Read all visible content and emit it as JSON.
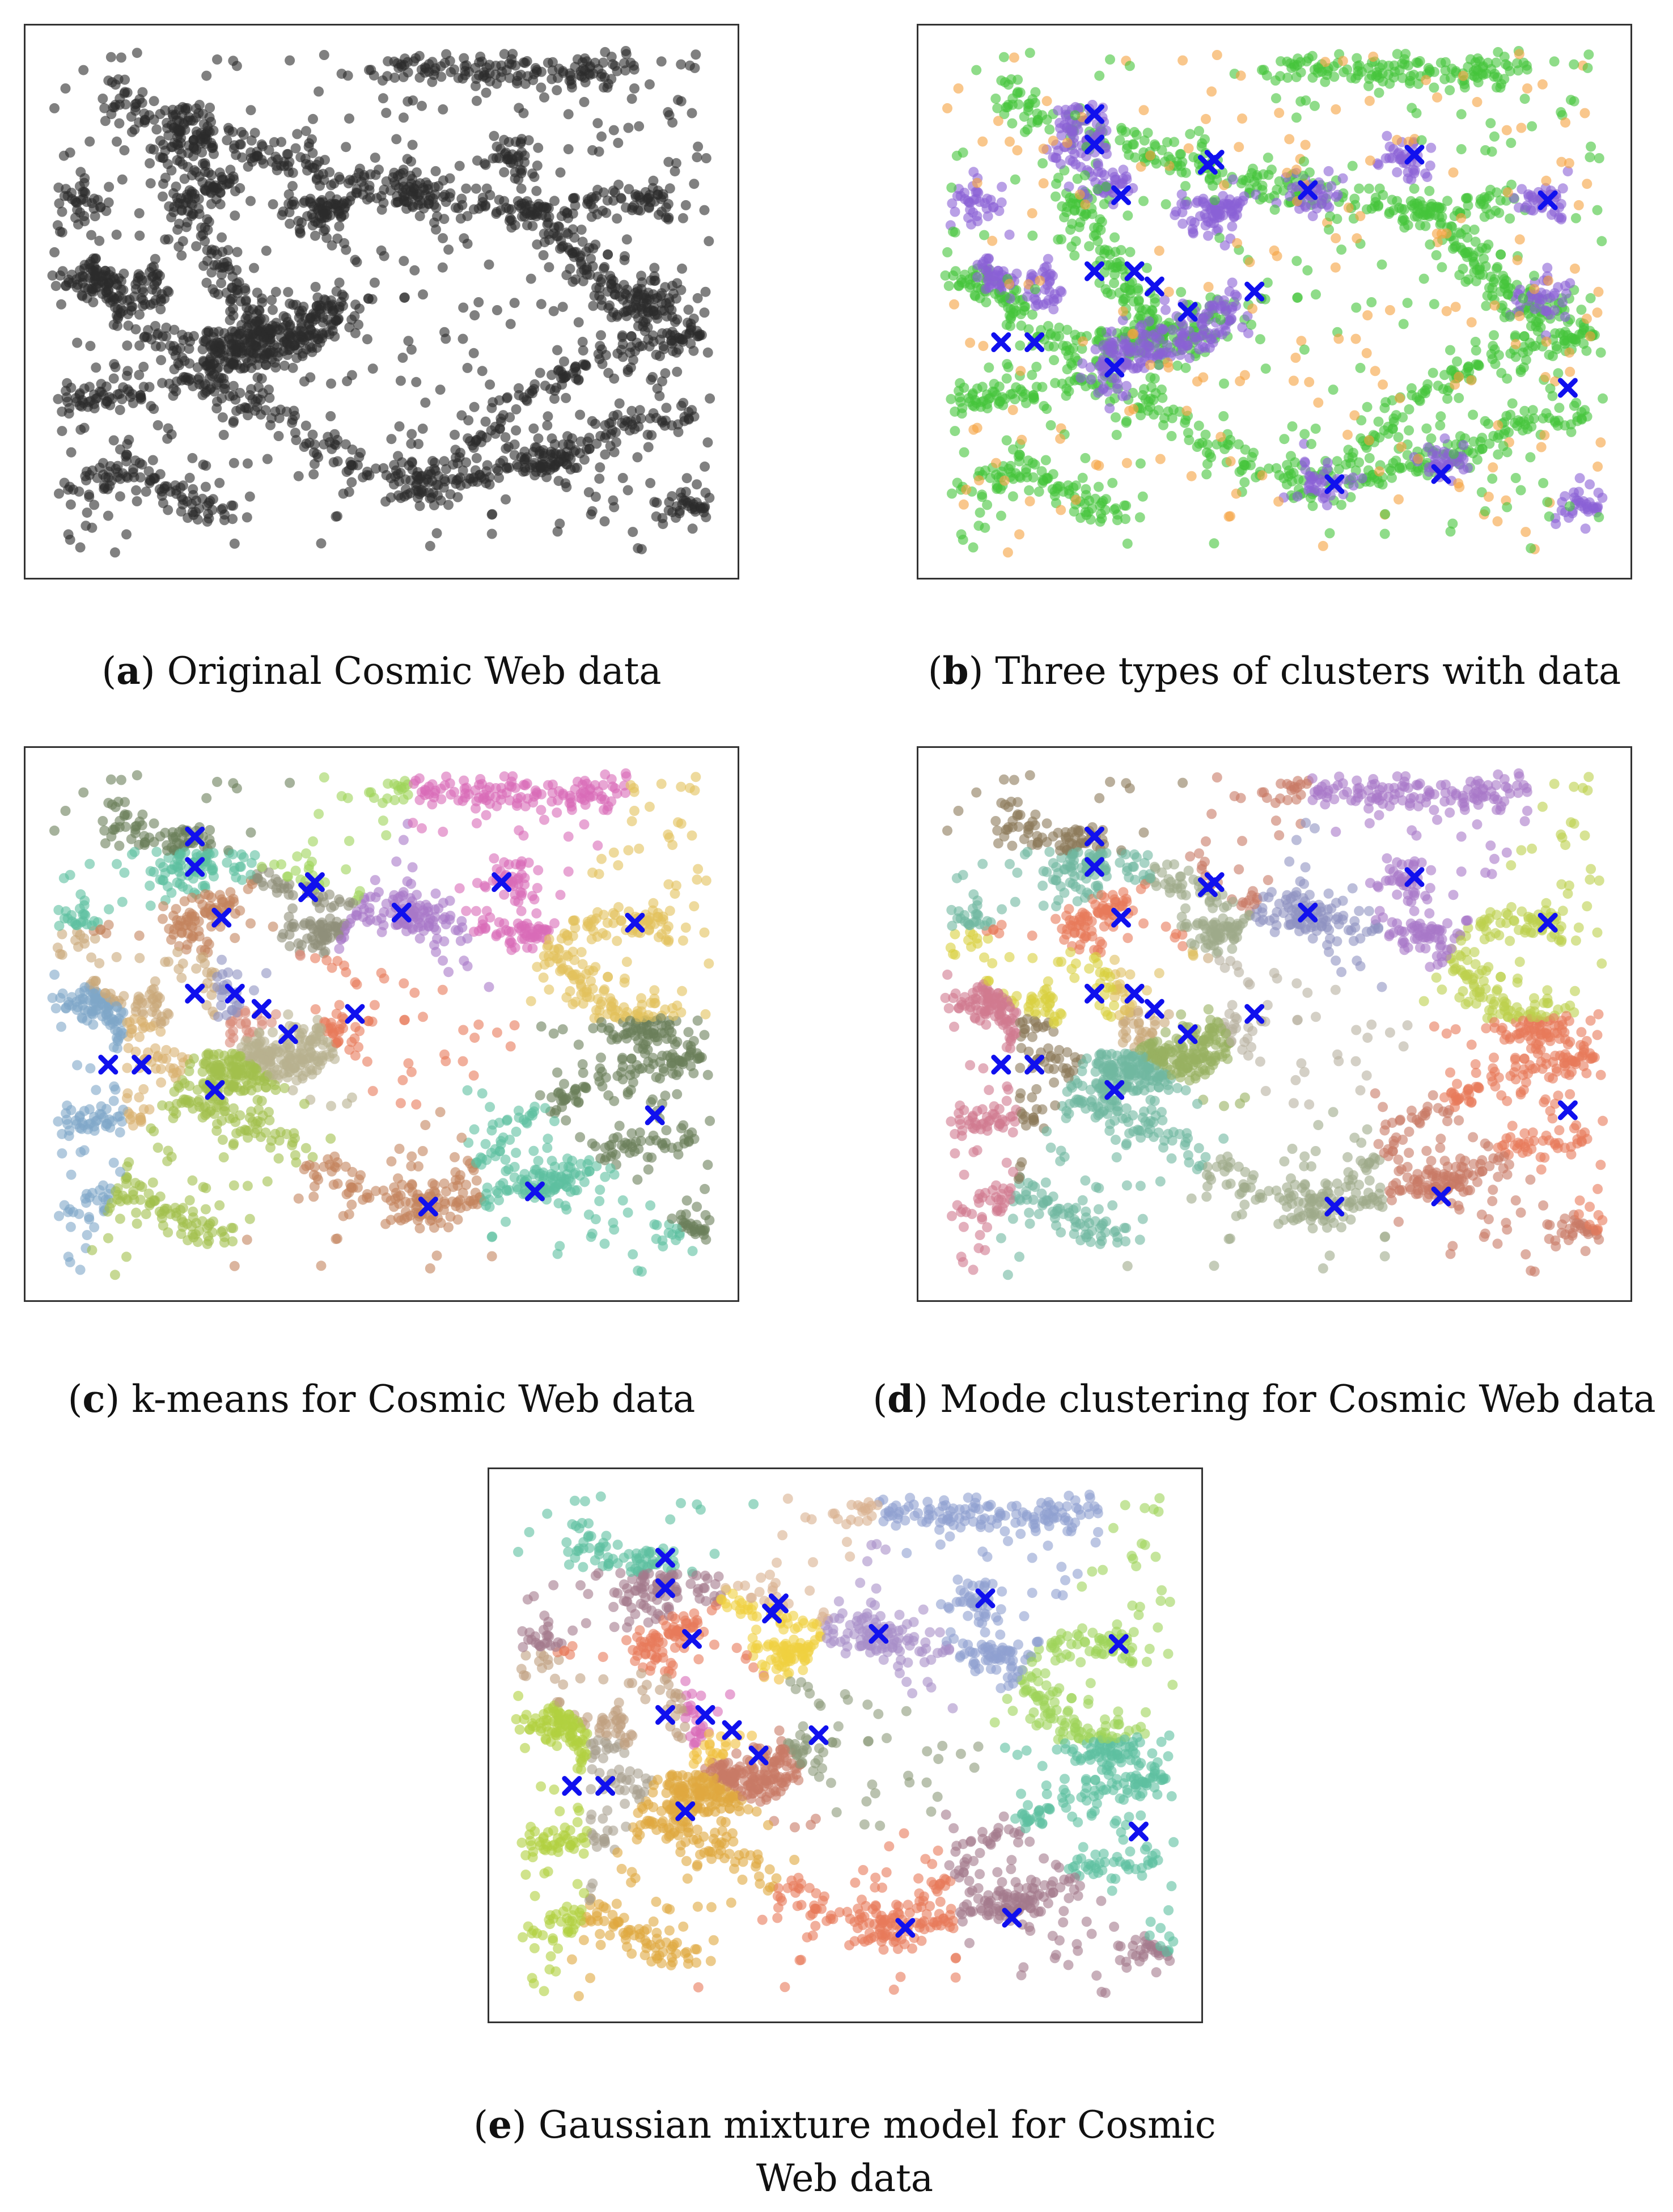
{
  "captions": {
    "a": {
      "letter": "a",
      "text": "Original Cosmic Web data"
    },
    "b": {
      "letter": "b",
      "text": "Three types of clusters with data"
    },
    "c": {
      "letter": "c",
      "text": "k-means for Cosmic Web data"
    },
    "d": {
      "letter": "d",
      "text": "Mode clustering for Cosmic Web data"
    },
    "e": {
      "letter": "e",
      "text": "Gaussian mixture model for Cosmic Web data"
    }
  },
  "colors": {
    "original_points": "#2b2b2b",
    "center_marker": "#1010ee",
    "filament": "#44c53a",
    "cluster": "#8a60d6",
    "noise": "#f5a240",
    "kmeans_palette": [
      "#6b7f5a",
      "#5ebfa0",
      "#c3845e",
      "#9fd35a",
      "#8f8f7a",
      "#a878c8",
      "#d86bb8",
      "#e2c25c",
      "#c9a87a",
      "#8f93c2",
      "#d98a7a",
      "#e87a5a",
      "#b8b090",
      "#7fa6c8",
      "#d8b070",
      "#a2c04c"
    ],
    "mode_palette": [
      "#8c7a5a",
      "#6fb8a0",
      "#e87a5a",
      "#c87a66",
      "#9faa8a",
      "#8f93c2",
      "#a878c8",
      "#bcd04c",
      "#d8d040",
      "#e0c060",
      "#c9a87a",
      "#b8b0a0",
      "#98b060",
      "#d07a90"
    ],
    "gmm_palette": [
      "#5ebfa0",
      "#a37a8c",
      "#e87a5a",
      "#d8b090",
      "#f0d040",
      "#a890c8",
      "#8fa0d0",
      "#9fd35a",
      "#c0a080",
      "#d86bb8",
      "#f0c040",
      "#8c9a7a",
      "#c87a66",
      "#b0d040",
      "#a8a090",
      "#e0a840"
    ]
  },
  "chart_data": [
    {
      "panel": "a",
      "type": "scatter",
      "xlim": [
        0,
        1
      ],
      "ylim": [
        0,
        1
      ],
      "description": "Original Cosmic Web data",
      "series": [
        {
          "kind": "points",
          "color": "#2b2b2b"
        }
      ],
      "filaments": [
        [
          [
            0.02,
            0.55
          ],
          [
            0.08,
            0.53
          ],
          [
            0.14,
            0.45
          ],
          [
            0.22,
            0.4
          ],
          [
            0.3,
            0.43
          ],
          [
            0.38,
            0.42
          ],
          [
            0.42,
            0.48
          ]
        ],
        [
          [
            0.1,
            0.92
          ],
          [
            0.18,
            0.85
          ],
          [
            0.3,
            0.8
          ],
          [
            0.4,
            0.76
          ],
          [
            0.5,
            0.72
          ],
          [
            0.62,
            0.7
          ],
          [
            0.74,
            0.68
          ],
          [
            0.86,
            0.7
          ]
        ],
        [
          [
            0.03,
            0.3
          ],
          [
            0.1,
            0.32
          ],
          [
            0.22,
            0.35
          ],
          [
            0.32,
            0.29
          ],
          [
            0.44,
            0.18
          ],
          [
            0.56,
            0.14
          ],
          [
            0.66,
            0.16
          ],
          [
            0.76,
            0.2
          ],
          [
            0.86,
            0.26
          ],
          [
            0.97,
            0.28
          ]
        ],
        [
          [
            0.2,
            0.76
          ],
          [
            0.22,
            0.66
          ],
          [
            0.26,
            0.56
          ],
          [
            0.3,
            0.48
          ],
          [
            0.36,
            0.4
          ]
        ],
        [
          [
            0.5,
            0.95
          ],
          [
            0.6,
            0.96
          ],
          [
            0.7,
            0.95
          ],
          [
            0.8,
            0.95
          ],
          [
            0.88,
            0.96
          ]
        ],
        [
          [
            0.62,
            0.2
          ],
          [
            0.7,
            0.3
          ],
          [
            0.8,
            0.38
          ],
          [
            0.92,
            0.42
          ],
          [
            0.97,
            0.44
          ]
        ],
        [
          [
            0.04,
            0.12
          ],
          [
            0.12,
            0.18
          ],
          [
            0.2,
            0.12
          ],
          [
            0.28,
            0.06
          ]
        ],
        [
          [
            0.72,
            0.7
          ],
          [
            0.78,
            0.62
          ],
          [
            0.82,
            0.54
          ],
          [
            0.88,
            0.48
          ],
          [
            0.96,
            0.48
          ]
        ]
      ],
      "clusters": [
        [
          0.21,
          0.85
        ],
        [
          0.21,
          0.8
        ],
        [
          0.08,
          0.55
        ],
        [
          0.15,
          0.53
        ],
        [
          0.42,
          0.48
        ],
        [
          0.38,
          0.44
        ],
        [
          0.32,
          0.41
        ],
        [
          0.28,
          0.41
        ],
        [
          0.25,
          0.73
        ],
        [
          0.42,
          0.68
        ],
        [
          0.4,
          0.67
        ],
        [
          0.56,
          0.72
        ],
        [
          0.7,
          0.78
        ],
        [
          0.9,
          0.7
        ],
        [
          0.26,
          0.36
        ],
        [
          0.57,
          0.14
        ],
        [
          0.75,
          0.18
        ],
        [
          0.96,
          0.1
        ],
        [
          0.05,
          0.7
        ],
        [
          0.9,
          0.5
        ]
      ]
    },
    {
      "panel": "b",
      "type": "scatter",
      "xlim": [
        0,
        1
      ],
      "ylim": [
        0,
        1
      ],
      "description": "Three types of clusters with data",
      "series": [
        {
          "kind": "filament",
          "color": "#44c53a"
        },
        {
          "kind": "cluster",
          "color": "#8a60d6"
        },
        {
          "kind": "noise",
          "color": "#f5a240"
        }
      ],
      "centers": [
        [
          0.23,
          0.87
        ],
        [
          0.23,
          0.81
        ],
        [
          0.27,
          0.71
        ],
        [
          0.41,
          0.78
        ],
        [
          0.4,
          0.77
        ],
        [
          0.55,
          0.72
        ],
        [
          0.71,
          0.79
        ],
        [
          0.91,
          0.7
        ],
        [
          0.23,
          0.56
        ],
        [
          0.29,
          0.56
        ],
        [
          0.32,
          0.53
        ],
        [
          0.47,
          0.52
        ],
        [
          0.37,
          0.48
        ],
        [
          0.09,
          0.42
        ],
        [
          0.14,
          0.42
        ],
        [
          0.26,
          0.37
        ],
        [
          0.94,
          0.33
        ],
        [
          0.75,
          0.16
        ],
        [
          0.59,
          0.14
        ]
      ]
    },
    {
      "panel": "c",
      "type": "scatter",
      "xlim": [
        0,
        1
      ],
      "ylim": [
        0,
        1
      ],
      "description": "k-means for Cosmic Web data",
      "centers": [
        [
          0.22,
          0.87
        ],
        [
          0.22,
          0.81
        ],
        [
          0.26,
          0.71
        ],
        [
          0.4,
          0.78
        ],
        [
          0.39,
          0.76
        ],
        [
          0.53,
          0.72
        ],
        [
          0.68,
          0.78
        ],
        [
          0.88,
          0.7
        ],
        [
          0.22,
          0.56
        ],
        [
          0.28,
          0.56
        ],
        [
          0.32,
          0.53
        ],
        [
          0.46,
          0.52
        ],
        [
          0.36,
          0.48
        ],
        [
          0.09,
          0.42
        ],
        [
          0.14,
          0.42
        ],
        [
          0.25,
          0.37
        ],
        [
          0.91,
          0.32
        ],
        [
          0.73,
          0.17
        ],
        [
          0.57,
          0.14
        ]
      ]
    },
    {
      "panel": "d",
      "type": "scatter",
      "xlim": [
        0,
        1
      ],
      "ylim": [
        0,
        1
      ],
      "description": "Mode clustering for Cosmic Web data",
      "centers": [
        [
          0.23,
          0.87
        ],
        [
          0.23,
          0.81
        ],
        [
          0.27,
          0.71
        ],
        [
          0.41,
          0.78
        ],
        [
          0.4,
          0.77
        ],
        [
          0.55,
          0.72
        ],
        [
          0.71,
          0.79
        ],
        [
          0.91,
          0.7
        ],
        [
          0.23,
          0.56
        ],
        [
          0.29,
          0.56
        ],
        [
          0.32,
          0.53
        ],
        [
          0.47,
          0.52
        ],
        [
          0.37,
          0.48
        ],
        [
          0.09,
          0.42
        ],
        [
          0.14,
          0.42
        ],
        [
          0.26,
          0.37
        ],
        [
          0.94,
          0.33
        ],
        [
          0.75,
          0.16
        ],
        [
          0.59,
          0.14
        ]
      ]
    },
    {
      "panel": "e",
      "type": "scatter",
      "xlim": [
        0,
        1
      ],
      "ylim": [
        0,
        1
      ],
      "description": "Gaussian mixture model for Cosmic Web data",
      "centers": [
        [
          0.23,
          0.87
        ],
        [
          0.23,
          0.81
        ],
        [
          0.27,
          0.71
        ],
        [
          0.4,
          0.78
        ],
        [
          0.39,
          0.76
        ],
        [
          0.55,
          0.72
        ],
        [
          0.71,
          0.79
        ],
        [
          0.91,
          0.7
        ],
        [
          0.23,
          0.56
        ],
        [
          0.29,
          0.56
        ],
        [
          0.33,
          0.53
        ],
        [
          0.46,
          0.52
        ],
        [
          0.37,
          0.48
        ],
        [
          0.09,
          0.42
        ],
        [
          0.14,
          0.42
        ],
        [
          0.26,
          0.37
        ],
        [
          0.94,
          0.33
        ],
        [
          0.75,
          0.16
        ],
        [
          0.59,
          0.14
        ]
      ]
    }
  ]
}
